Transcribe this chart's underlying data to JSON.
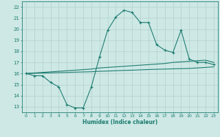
{
  "title": "",
  "xlabel": "Humidex (Indice chaleur)",
  "background_color": "#cde8e5",
  "grid_color": "#b0d0cc",
  "line_color": "#1a7a6e",
  "xlim": [
    -0.5,
    23.5
  ],
  "ylim": [
    12.5,
    22.5
  ],
  "yticks": [
    13,
    14,
    15,
    16,
    17,
    18,
    19,
    20,
    21,
    22
  ],
  "xticks": [
    0,
    1,
    2,
    3,
    4,
    5,
    6,
    7,
    8,
    9,
    10,
    11,
    12,
    13,
    14,
    15,
    16,
    17,
    18,
    19,
    20,
    21,
    22,
    23
  ],
  "curve1_x": [
    0,
    1,
    2,
    3,
    4,
    5,
    6,
    7,
    8,
    9,
    10,
    11,
    12,
    13,
    14,
    15,
    16,
    17,
    18,
    19,
    20,
    21,
    22,
    23
  ],
  "curve1_y": [
    16.0,
    15.8,
    15.8,
    15.2,
    14.8,
    13.2,
    12.9,
    12.9,
    14.8,
    17.5,
    19.9,
    21.1,
    21.7,
    21.5,
    20.6,
    20.6,
    18.6,
    18.1,
    17.9,
    19.9,
    17.3,
    17.0,
    17.0,
    16.8
  ],
  "curve2_x": [
    0,
    1,
    2,
    3,
    4,
    5,
    6,
    7,
    8,
    9,
    10,
    11,
    12,
    13,
    14,
    15,
    16,
    17,
    18,
    19,
    20,
    21,
    22,
    23
  ],
  "curve2_y": [
    16.0,
    16.05,
    16.1,
    16.15,
    16.2,
    16.25,
    16.3,
    16.35,
    16.4,
    16.5,
    16.55,
    16.6,
    16.65,
    16.7,
    16.75,
    16.8,
    16.85,
    16.9,
    17.0,
    17.05,
    17.1,
    17.15,
    17.2,
    17.0
  ],
  "curve3_x": [
    0,
    1,
    2,
    3,
    4,
    5,
    6,
    7,
    8,
    9,
    10,
    11,
    12,
    13,
    14,
    15,
    16,
    17,
    18,
    19,
    20,
    21,
    22,
    23
  ],
  "curve3_y": [
    16.0,
    16.02,
    16.04,
    16.06,
    16.08,
    16.1,
    16.12,
    16.14,
    16.16,
    16.2,
    16.22,
    16.25,
    16.28,
    16.3,
    16.33,
    16.36,
    16.38,
    16.4,
    16.42,
    16.44,
    16.46,
    16.5,
    16.55,
    16.6
  ]
}
